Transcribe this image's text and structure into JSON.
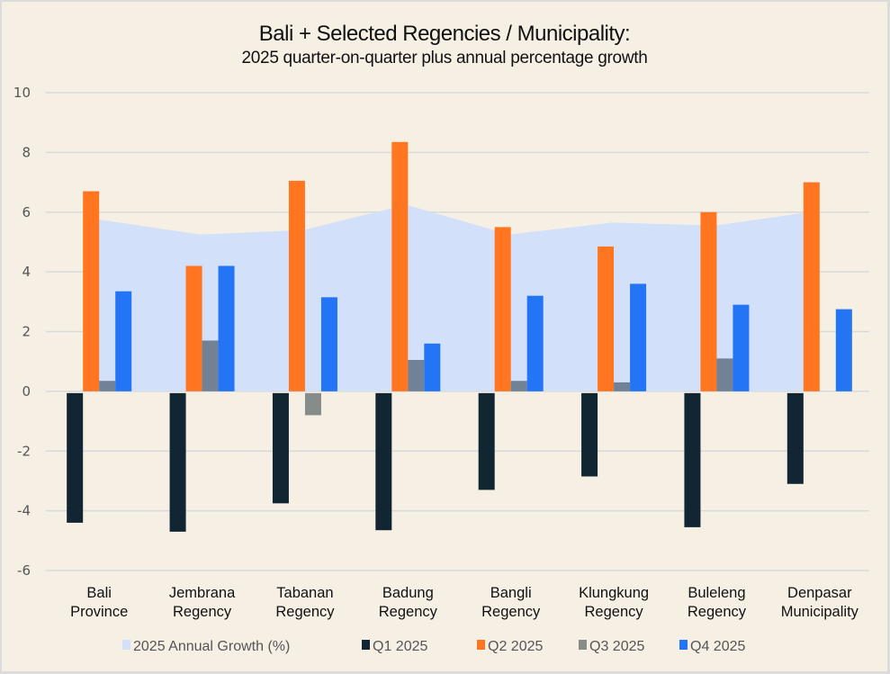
{
  "chart_data": {
    "type": "bar",
    "title": "Bali + Selected Regencies / Municipality:",
    "subtitle": "2025 quarter-on-quarter plus annual percentage growth",
    "xlabel": "",
    "ylabel": "",
    "ylim": [
      -6,
      10
    ],
    "yticks": [
      10,
      8,
      6,
      4,
      2,
      0,
      -2,
      -4,
      -6
    ],
    "grid": true,
    "legend_position": "bottom",
    "categories": [
      [
        "Bali",
        "Province"
      ],
      [
        "Jembrana",
        "Regency"
      ],
      [
        "Tabanan",
        "Regency"
      ],
      [
        "Badung",
        "Regency"
      ],
      [
        "Bangli",
        "Regency"
      ],
      [
        "Klungkung",
        "Regency"
      ],
      [
        "Buleleng",
        "Regency"
      ],
      [
        "Denpasar",
        "Municipality"
      ]
    ],
    "area_series": {
      "name": "2025 Annual Growth (%)",
      "type": "area",
      "color": "#d3e0fa",
      "values": [
        5.8,
        5.25,
        5.4,
        6.25,
        5.25,
        5.65,
        5.55,
        6.0
      ]
    },
    "series": [
      {
        "name": "Q1 2025",
        "color": "#112532",
        "values": [
          -4.4,
          -4.7,
          -3.75,
          -4.65,
          -3.3,
          -2.85,
          -4.55,
          -3.1
        ]
      },
      {
        "name": "Q2 2025",
        "color": "#ff7520",
        "values": [
          6.7,
          4.2,
          7.05,
          8.35,
          5.5,
          4.85,
          6.0,
          7.0
        ]
      },
      {
        "name": "Q3 2025",
        "color": "#718296",
        "negative_color": "#858c8a",
        "values": [
          0.35,
          1.7,
          -0.8,
          1.05,
          0.35,
          0.3,
          1.1,
          0.0
        ]
      },
      {
        "name": "Q4 2025",
        "color": "#2475f6",
        "values": [
          3.35,
          4.2,
          3.15,
          1.6,
          3.2,
          3.6,
          2.9,
          2.75
        ]
      }
    ],
    "legend": [
      {
        "label": "2025 Annual Growth (%)",
        "color": "#d3e0fa"
      },
      {
        "label": "Q1 2025",
        "color": "#112532"
      },
      {
        "label": "Q2 2025",
        "color": "#ff7520"
      },
      {
        "label": "Q3 2025",
        "color": "#858c8a"
      },
      {
        "label": "Q4 2025",
        "color": "#2475f6"
      }
    ],
    "colors": {
      "background": "#f6f0e4",
      "gridline": "#d9d9d9"
    }
  }
}
